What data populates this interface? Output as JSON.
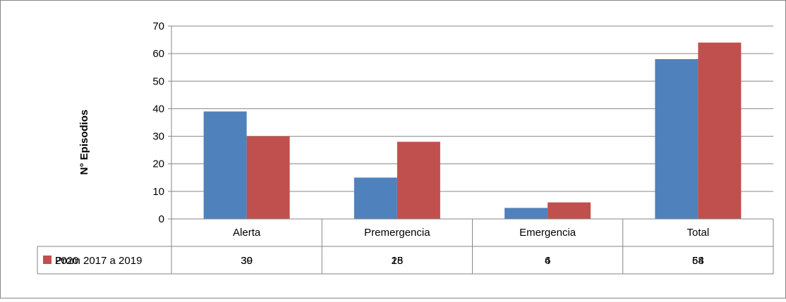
{
  "chart_data": {
    "type": "bar",
    "title": "",
    "xlabel": "",
    "ylabel": "N° Episodios",
    "ylim": [
      0,
      70
    ],
    "yticks": [
      0,
      10,
      20,
      30,
      40,
      50,
      60,
      70
    ],
    "grid": true,
    "legend": "data-table-left",
    "categories": [
      "Alerta",
      "Premergencia",
      "Emergencia",
      "Total"
    ],
    "series": [
      {
        "name": "2020",
        "values": [
          39,
          15,
          4,
          58
        ],
        "color": "#4F81BD"
      },
      {
        "name": "Prom 2017 a 2019",
        "values": [
          30,
          28,
          6,
          64
        ],
        "color": "#C0504D"
      }
    ]
  }
}
